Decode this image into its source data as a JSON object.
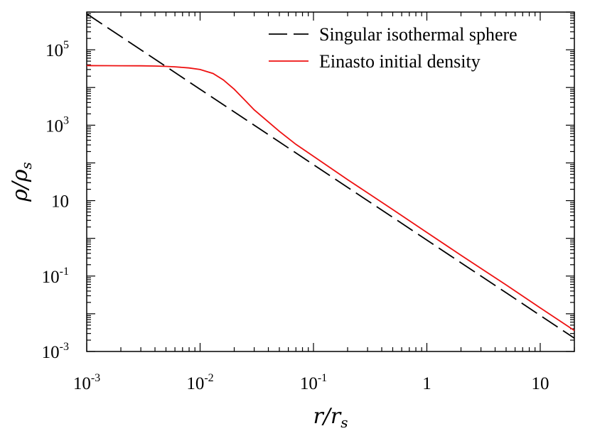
{
  "chart_data": {
    "type": "line",
    "xscale": "log",
    "yscale": "log",
    "xlim": [
      0.001,
      20
    ],
    "ylim": [
      0.001,
      1000000
    ],
    "xlabel": {
      "main": "r/r",
      "sub": "s"
    },
    "ylabel": {
      "main": "ρ/ρ",
      "sub": "s"
    },
    "grid": false,
    "legend_position": "top-right",
    "x_ticks": [
      {
        "value": 0.001,
        "base": "10",
        "exp": "-3"
      },
      {
        "value": 0.01,
        "base": "10",
        "exp": "-2"
      },
      {
        "value": 0.1,
        "base": "10",
        "exp": "-1"
      },
      {
        "value": 1,
        "base": "1",
        "exp": ""
      },
      {
        "value": 10,
        "base": "10",
        "exp": ""
      }
    ],
    "y_ticks": [
      {
        "value": 0.001,
        "base": "10",
        "exp": "-3"
      },
      {
        "value": 0.1,
        "base": "10",
        "exp": "-1"
      },
      {
        "value": 10,
        "base": "10",
        "exp": ""
      },
      {
        "value": 1000,
        "base": "10",
        "exp": "3"
      },
      {
        "value": 100000,
        "base": "10",
        "exp": "5"
      }
    ],
    "series": [
      {
        "name": "Singular isothermal sphere",
        "color": "#000000",
        "dash": "dashed",
        "x": [
          0.001,
          0.002,
          0.005,
          0.01,
          0.02,
          0.05,
          0.1,
          0.2,
          0.5,
          1,
          2,
          5,
          10,
          20
        ],
        "y": [
          900000,
          225000,
          36000,
          9000,
          2250,
          360,
          90,
          22.5,
          3.6,
          0.9,
          0.225,
          0.036,
          0.009,
          0.00225
        ]
      },
      {
        "name": "Einasto initial density",
        "color": "#ee1111",
        "dash": "solid",
        "x": [
          0.001,
          0.0015,
          0.002,
          0.003,
          0.004,
          0.005,
          0.006,
          0.008,
          0.01,
          0.013,
          0.016,
          0.02,
          0.025,
          0.03,
          0.04,
          0.05,
          0.07,
          0.1,
          0.2,
          0.5,
          1,
          2,
          5,
          10,
          20
        ],
        "y": [
          38000,
          37900,
          37800,
          37500,
          37000,
          36300,
          35400,
          33000,
          30000,
          23500,
          15900,
          9000,
          4500,
          2550,
          1220,
          690,
          310,
          150,
          36,
          5.8,
          1.43,
          0.356,
          0.058,
          0.0143,
          0.0036
        ]
      }
    ]
  }
}
